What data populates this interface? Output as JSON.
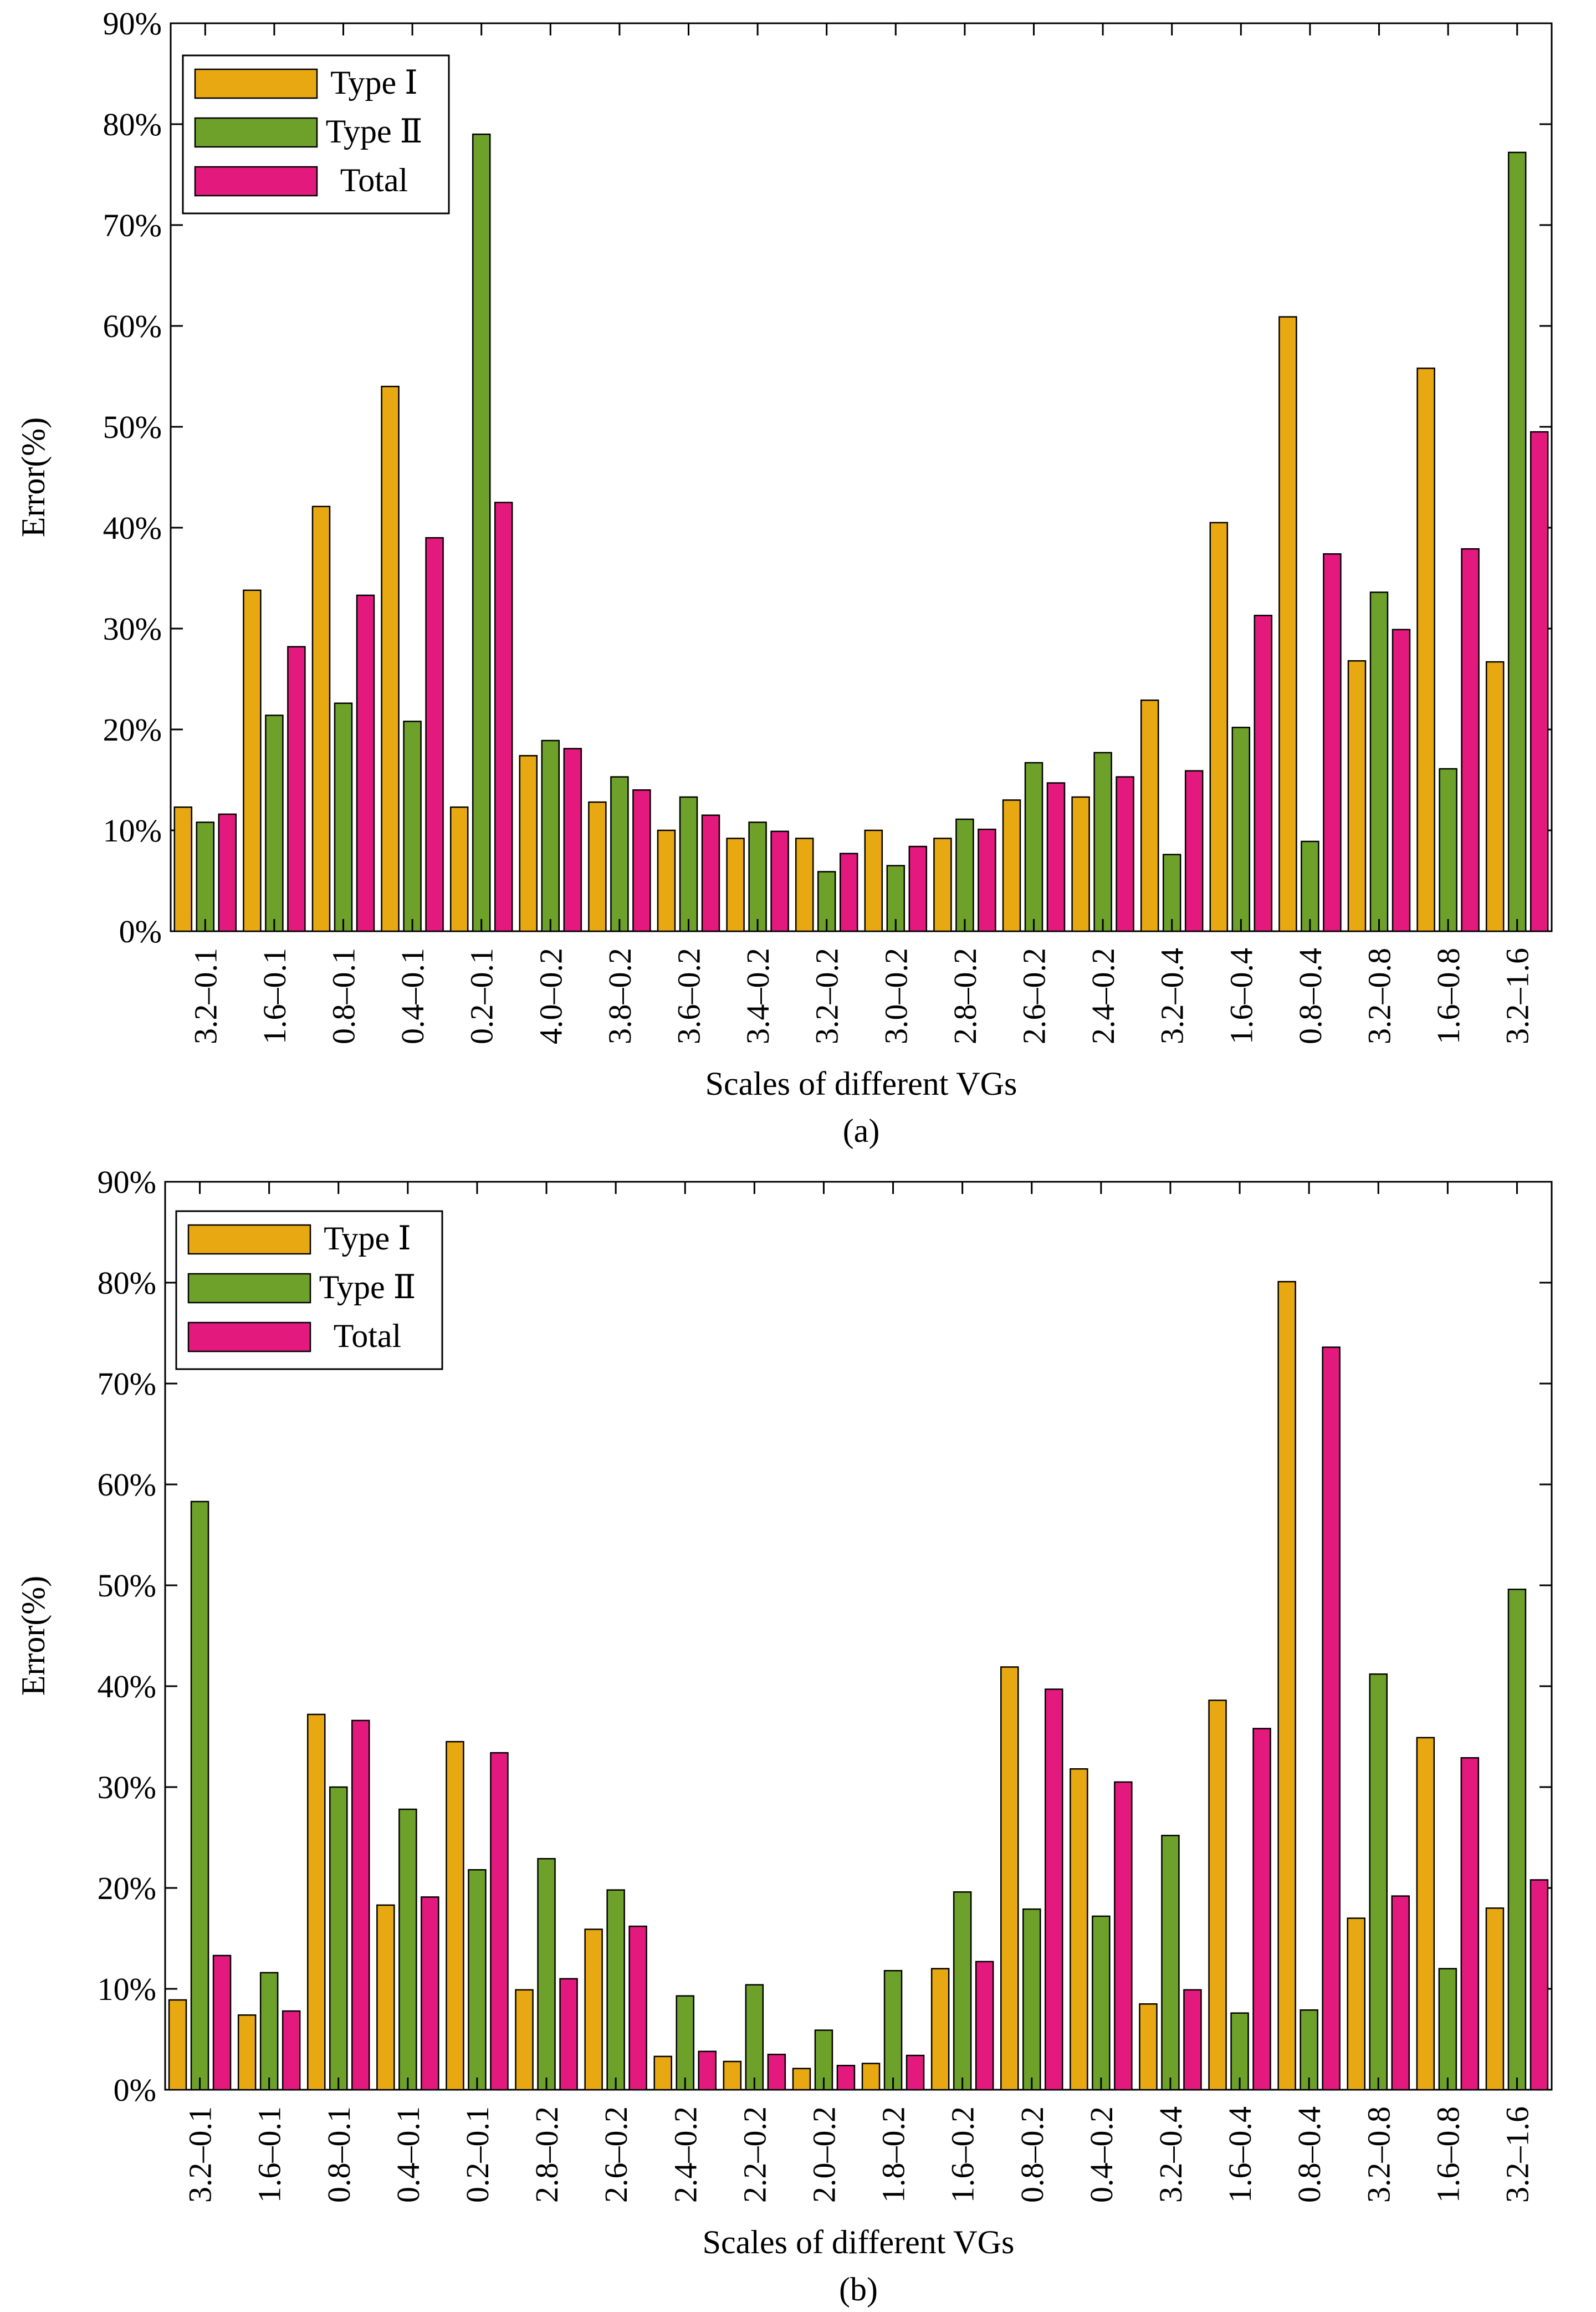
{
  "chart_data": [
    {
      "type": "bar",
      "title": "",
      "caption": "(a)",
      "xlabel": "Scales of different VGs",
      "ylabel": "Error(%)",
      "ylim": [
        0,
        90
      ],
      "yticks": [
        "0%",
        "10%",
        "20%",
        "30%",
        "40%",
        "50%",
        "60%",
        "70%",
        "80%",
        "90%"
      ],
      "legend_position": "top-left",
      "grid": false,
      "categories": [
        "3.2–0.1",
        "1.6–0.1",
        "0.8–0.1",
        "0.4–0.1",
        "0.2–0.1",
        "4.0–0.2",
        "3.8–0.2",
        "3.6–0.2",
        "3.4–0.2",
        "3.2–0.2",
        "3.0–0.2",
        "2.8–0.2",
        "2.6–0.2",
        "2.4–0.2",
        "3.2–0.4",
        "1.6–0.4",
        "0.8–0.4",
        "3.2–0.8",
        "1.6–0.8",
        "3.2–1.6"
      ],
      "series": [
        {
          "name": "Type Ⅰ",
          "color": "#e8a812",
          "values": [
            12.3,
            33.8,
            42.1,
            54.0,
            12.3,
            17.4,
            12.8,
            10.0,
            9.2,
            9.2,
            10.0,
            9.2,
            13.0,
            13.3,
            22.9,
            40.5,
            60.9,
            26.8,
            55.8,
            26.7
          ]
        },
        {
          "name": "Type Ⅱ",
          "color": "#6ea12a",
          "values": [
            10.8,
            21.4,
            22.6,
            20.8,
            79.0,
            18.9,
            15.3,
            13.3,
            10.8,
            5.9,
            6.5,
            11.1,
            16.7,
            17.7,
            7.6,
            20.2,
            8.9,
            33.6,
            16.1,
            77.2
          ]
        },
        {
          "name": "Total",
          "color": "#e4197e",
          "values": [
            11.6,
            28.2,
            33.3,
            39.0,
            42.5,
            18.1,
            14.0,
            11.5,
            9.9,
            7.7,
            8.4,
            10.1,
            14.7,
            15.3,
            15.9,
            31.3,
            37.4,
            29.9,
            37.9,
            49.5
          ]
        }
      ]
    },
    {
      "type": "bar",
      "title": "",
      "caption": "(b)",
      "xlabel": "Scales of different VGs",
      "ylabel": "Error(%)",
      "ylim": [
        0,
        90
      ],
      "yticks": [
        "0%",
        "10%",
        "20%",
        "30%",
        "40%",
        "50%",
        "60%",
        "70%",
        "80%",
        "90%"
      ],
      "legend_position": "top-left",
      "grid": false,
      "categories": [
        "3.2–0.1",
        "1.6–0.1",
        "0.8–0.1",
        "0.4–0.1",
        "0.2–0.1",
        "2.8–0.2",
        "2.6–0.2",
        "2.4–0.2",
        "2.2–0.2",
        "2.0–0.2",
        "1.8–0.2",
        "1.6–0.2",
        "0.8–0.2",
        "0.4–0.2",
        "3.2–0.4",
        "1.6–0.4",
        "0.8–0.4",
        "3.2–0.8",
        "1.6–0.8",
        "3.2–1.6"
      ],
      "series": [
        {
          "name": "Type Ⅰ",
          "color": "#e8a812",
          "values": [
            8.9,
            7.4,
            37.2,
            18.3,
            34.5,
            9.9,
            15.9,
            3.3,
            2.8,
            2.1,
            2.6,
            12.0,
            41.9,
            31.8,
            8.5,
            38.6,
            80.1,
            17.0,
            34.9,
            18.0
          ]
        },
        {
          "name": "Type Ⅱ",
          "color": "#6ea12a",
          "values": [
            58.3,
            11.6,
            30.0,
            27.8,
            21.8,
            22.9,
            19.8,
            9.3,
            10.4,
            5.9,
            11.8,
            19.6,
            17.9,
            17.2,
            25.2,
            7.6,
            7.9,
            41.2,
            12.0,
            49.6
          ]
        },
        {
          "name": "Total",
          "color": "#e4197e",
          "values": [
            13.3,
            7.8,
            36.6,
            19.1,
            33.4,
            11.0,
            16.2,
            3.8,
            3.5,
            2.4,
            3.4,
            12.7,
            39.7,
            30.5,
            9.9,
            35.8,
            73.6,
            19.2,
            32.9,
            20.8
          ]
        }
      ]
    }
  ]
}
